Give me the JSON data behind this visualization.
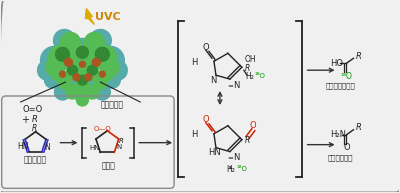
{
  "bg_color": "#f0f0f0",
  "white": "#ffffff",
  "border_color": "#888888",
  "black": "#222222",
  "blue": "#3333cc",
  "red": "#cc2200",
  "green": "#009900",
  "orange": "#cc8800",
  "arrow_color": "#333333",
  "uvc_text": "UVC",
  "uvc_color": "#cc8800",
  "antibody_label": "抗体医薬品",
  "histidine_label": "ヒスチジン",
  "intermediate_label": "中間体",
  "aspartic_label": "アスパラギン酸",
  "asparagine_label": "アスパラギン",
  "img_bg": "#f8f8f8"
}
